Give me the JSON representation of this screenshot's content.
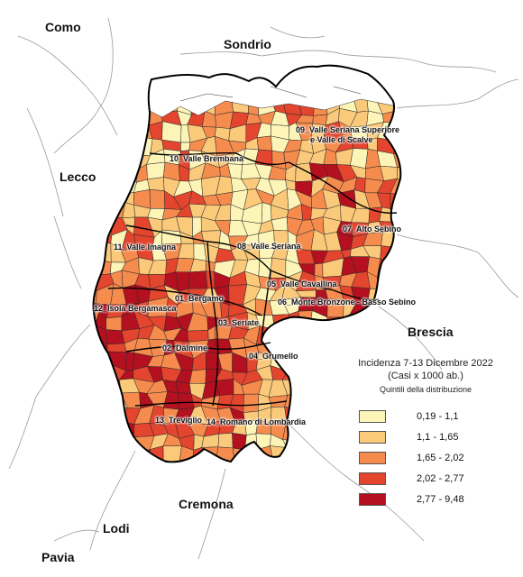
{
  "provinces": {
    "como": "Como",
    "sondrio": "Sondrio",
    "lecco": "Lecco",
    "brescia": "Brescia",
    "cremona": "Cremona",
    "lodi": "Lodi",
    "pavia": "Pavia"
  },
  "districts": [
    "09_Valle Seriana Superiore",
    "e Valle di Scalve",
    "10_Valle Brembana",
    "07_Alto Sebino",
    "08_Valle Seriana",
    "11_Valle Imagna",
    "05_Valle Cavallina",
    "06_Monte Bronzone - Basso Sebino",
    "01_Bergamo",
    "12_Isola Bergamasca",
    "03_Seriate",
    "02_Dalmine",
    "04_Grumello",
    "13_Treviglio",
    "14_Romano di Lombardia"
  ],
  "legend": {
    "title_line1": "Incidenza 7-13 Dicembre 2022",
    "title_line2": "(Casi x 1000 ab.)",
    "subtitle": "Quintili della distribuzione",
    "classes": [
      {
        "range": "0,19 - 1,1",
        "color": "#fdf5b8"
      },
      {
        "range": "1,1 - 1,65",
        "color": "#fbc97a"
      },
      {
        "range": "1,65 - 2,02",
        "color": "#f58c4e"
      },
      {
        "range": "2,02 - 2,77",
        "color": "#e3452e"
      },
      {
        "range": "2,77 - 9,48",
        "color": "#b4101f"
      }
    ]
  }
}
